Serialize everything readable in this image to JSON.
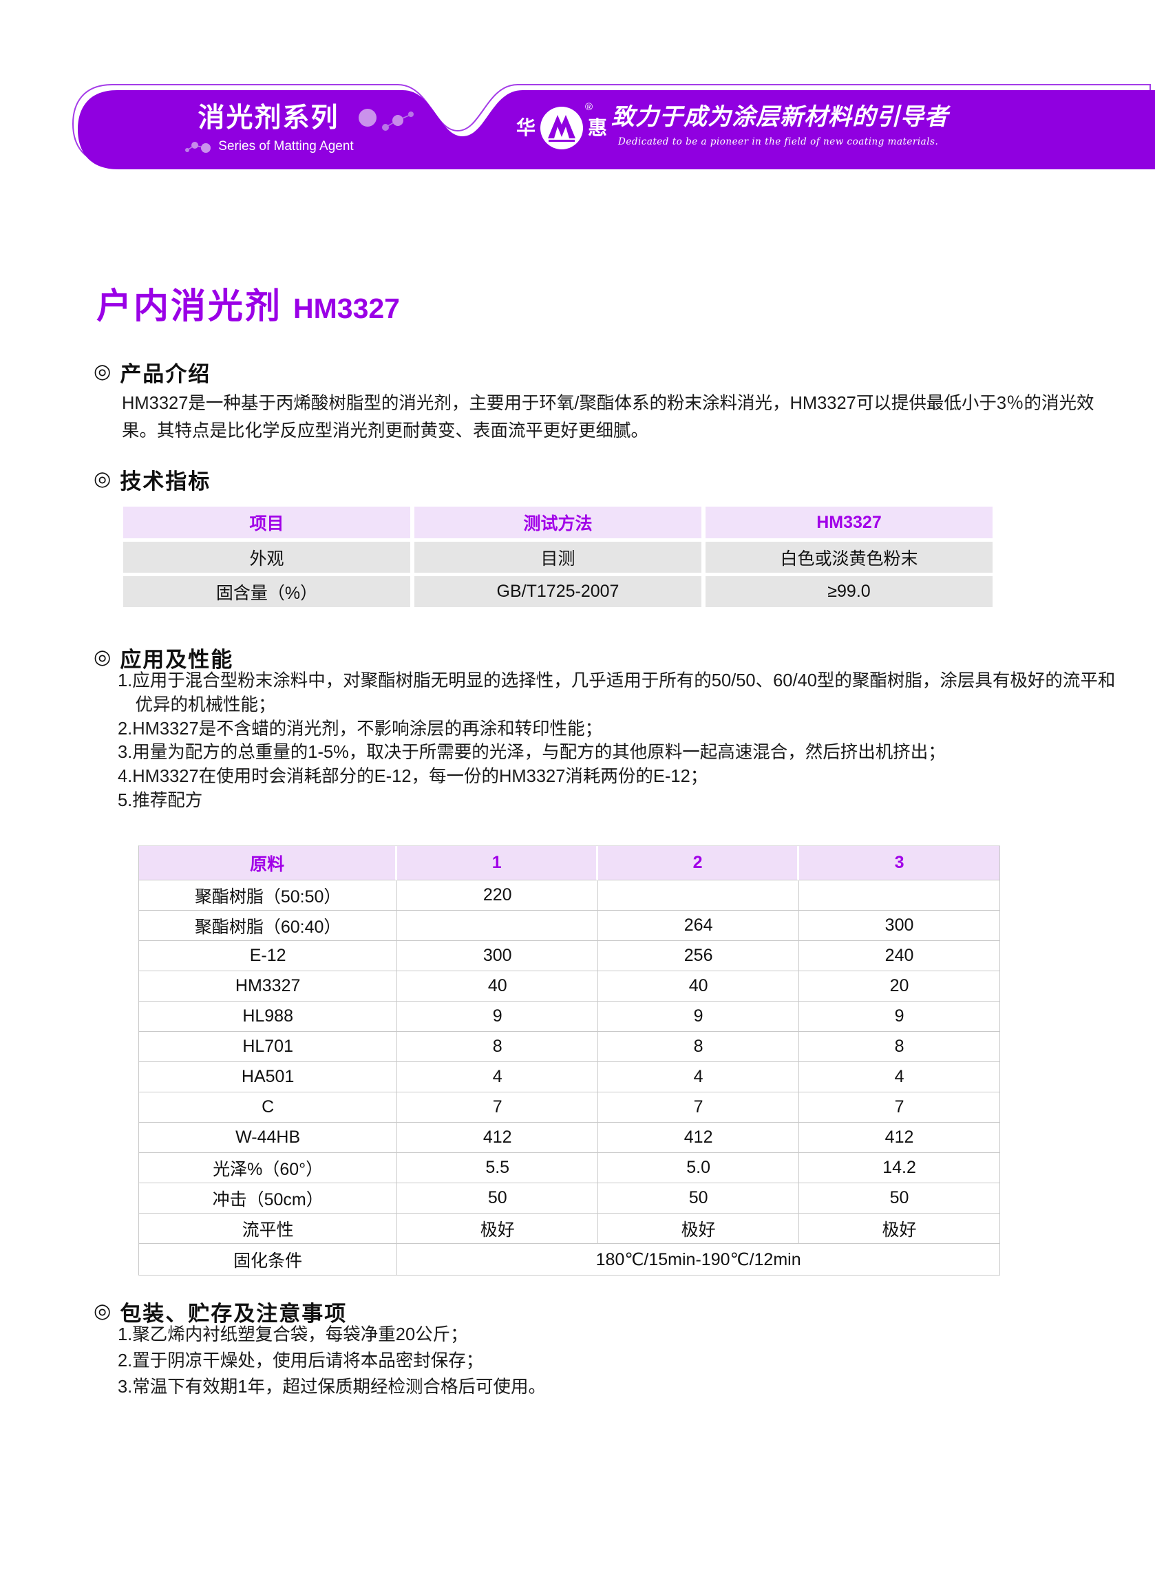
{
  "banner": {
    "series_title_cn": "消光剂系列",
    "series_title_en": "Series of Matting Agent",
    "logo": {
      "left_char": "华",
      "right_char": "惠",
      "registered_mark": "®"
    },
    "slogan_cn": "致力于成为涂层新材料的引导者",
    "slogan_en": "Dedicated to be a pioneer in the field of new coating materials."
  },
  "title": {
    "product_name": "户内消光剂",
    "model": "HM3327"
  },
  "sections": {
    "intro": {
      "heading": "产品介绍",
      "bullet": "◎",
      "lines": [
        "HM3327是一种基于丙烯酸树脂型的消光剂，主要用于环氧/聚酯体系的粉末涂料消光，HM3327可以提供最低小于3％的消光效",
        "果。其特点是比化学反应型消光剂更耐黄变、表面流平更好更细腻。"
      ]
    },
    "tech": {
      "heading": "技术指标",
      "bullet": "◎",
      "table": {
        "headers": [
          "项目",
          "测试方法",
          "HM3327"
        ],
        "rows": [
          [
            "外观",
            "目测",
            "白色或淡黄色粉末"
          ],
          [
            "固含量（%）",
            "GB/T1725-2007",
            "≥99.0"
          ]
        ]
      }
    },
    "app": {
      "heading": "应用及性能",
      "bullet": "◎",
      "items": [
        "1.应用于混合型粉末涂料中，对聚酯树脂无明显的选择性，几乎适用于所有的50/50、60/40型的聚酯树脂，涂层具有极好的流平和",
        "　优异的机械性能；",
        "2.HM3327是不含蜡的消光剂，不影响涂层的再涂和转印性能；",
        "3.用量为配方的总重量的1-5%，取决于所需要的光泽，与配方的其他原料一起高速混合，然后挤出机挤出；",
        "4.HM3327在使用时会消耗部分的E-12，每一份的HM3327消耗两份的E-12；",
        "5.推荐配方"
      ]
    },
    "formula": {
      "table": {
        "headers": [
          "原料",
          "1",
          "2",
          "3"
        ],
        "rows": [
          [
            "聚酯树脂（50:50）",
            "220",
            "",
            ""
          ],
          [
            "聚酯树脂（60:40）",
            "",
            "264",
            "300"
          ],
          [
            "E-12",
            "300",
            "256",
            "240"
          ],
          [
            "HM3327",
            "40",
            "40",
            "20"
          ],
          [
            "HL988",
            "9",
            "9",
            "9"
          ],
          [
            "HL701",
            "8",
            "8",
            "8"
          ],
          [
            "HA501",
            "4",
            "4",
            "4"
          ],
          [
            "C",
            "7",
            "7",
            "7"
          ],
          [
            "W-44HB",
            "412",
            "412",
            "412"
          ],
          [
            "光泽%（60°）",
            "5.5",
            "5.0",
            "14.2"
          ],
          [
            "冲击（50cm）",
            "50",
            "50",
            "50"
          ],
          [
            "流平性",
            "极好",
            "极好",
            "极好"
          ]
        ],
        "merged_row": {
          "label": "固化条件",
          "value": "180℃/15min-190℃/12min"
        }
      }
    },
    "pack": {
      "heading": "包装、贮存及注意事项",
      "bullet": "◎",
      "items": [
        "1.聚乙烯内衬纸塑复合袋，每袋净重20公斤；",
        "2.置于阴凉干燥处，使用后请将本品密封保存；",
        "3.常温下有效期1年，超过保质期经检测合格后可使用。"
      ]
    }
  },
  "colors": {
    "banner_purple": "#9000E0",
    "accent_text_purple": "#9A00E6",
    "table_header_bg": "#F1E2FA",
    "table_header_text": "#A100E8",
    "table1_row_bg": "#E5E5E5",
    "table2_border": "#C9C9C9"
  }
}
